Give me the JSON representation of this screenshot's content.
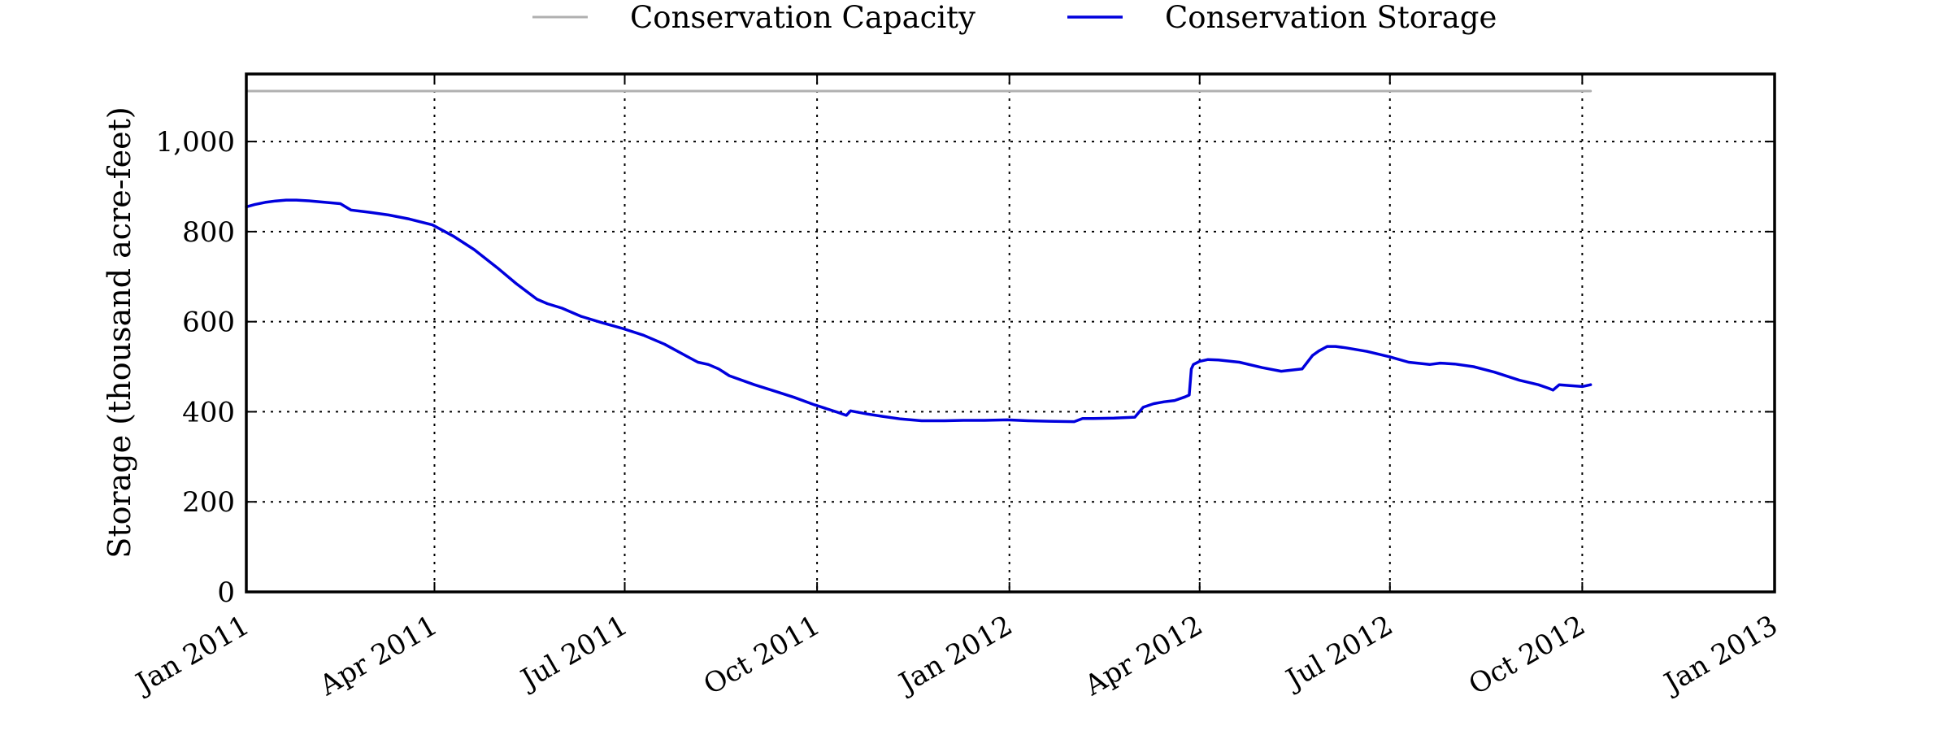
{
  "chart_data": {
    "type": "line",
    "title": "",
    "xlabel": "",
    "ylabel": "Storage (thousand acre-feet)",
    "xlim": [
      "2011-01-01",
      "2013-01-01"
    ],
    "ylim": [
      0,
      1150
    ],
    "grid": true,
    "legend_position": "top-center, outside plot",
    "x_ticks": [
      {
        "date": "2011-01-01",
        "label": "Jan 2011"
      },
      {
        "date": "2011-04-01",
        "label": "Apr 2011"
      },
      {
        "date": "2011-07-01",
        "label": "Jul 2011"
      },
      {
        "date": "2011-10-01",
        "label": "Oct 2011"
      },
      {
        "date": "2012-01-01",
        "label": "Jan 2012"
      },
      {
        "date": "2012-04-01",
        "label": "Apr 2012"
      },
      {
        "date": "2012-07-01",
        "label": "Jul 2012"
      },
      {
        "date": "2012-10-01",
        "label": "Oct 2012"
      },
      {
        "date": "2013-01-01",
        "label": "Jan 2013"
      }
    ],
    "y_ticks": [
      {
        "value": 0,
        "label": "0"
      },
      {
        "value": 200,
        "label": "200"
      },
      {
        "value": 400,
        "label": "400"
      },
      {
        "value": 600,
        "label": "600"
      },
      {
        "value": 800,
        "label": "800"
      },
      {
        "value": 1000,
        "label": "1,000"
      }
    ],
    "series": [
      {
        "name": "Conservation Capacity",
        "color": "#b0b0b0",
        "x": [
          "2011-01-01",
          "2012-10-05"
        ],
        "y": [
          1112,
          1112
        ]
      },
      {
        "name": "Conservation Storage",
        "color": "#0000dd",
        "x": [
          "2011-01-01",
          "2011-01-05",
          "2011-01-10",
          "2011-01-15",
          "2011-01-20",
          "2011-01-25",
          "2011-02-01",
          "2011-02-08",
          "2011-02-15",
          "2011-02-20",
          "2011-02-25",
          "2011-03-01",
          "2011-03-10",
          "2011-03-20",
          "2011-03-31",
          "2011-04-10",
          "2011-04-20",
          "2011-05-01",
          "2011-05-10",
          "2011-05-20",
          "2011-05-25",
          "2011-06-01",
          "2011-06-10",
          "2011-06-20",
          "2011-06-30",
          "2011-07-10",
          "2011-07-20",
          "2011-08-01",
          "2011-08-05",
          "2011-08-10",
          "2011-08-15",
          "2011-08-20",
          "2011-09-01",
          "2011-09-10",
          "2011-09-20",
          "2011-09-30",
          "2011-10-10",
          "2011-10-15",
          "2011-10-17",
          "2011-10-25",
          "2011-11-01",
          "2011-11-10",
          "2011-11-20",
          "2011-12-01",
          "2011-12-10",
          "2011-12-20",
          "2011-12-31",
          "2012-01-10",
          "2012-01-20",
          "2012-02-01",
          "2012-02-05",
          "2012-02-10",
          "2012-02-20",
          "2012-03-01",
          "2012-03-05",
          "2012-03-10",
          "2012-03-15",
          "2012-03-20",
          "2012-03-25",
          "2012-03-27",
          "2012-03-28",
          "2012-03-29",
          "2012-04-01",
          "2012-04-05",
          "2012-04-10",
          "2012-04-20",
          "2012-05-01",
          "2012-05-10",
          "2012-05-20",
          "2012-05-25",
          "2012-05-28",
          "2012-06-01",
          "2012-06-05",
          "2012-06-10",
          "2012-06-20",
          "2012-07-01",
          "2012-07-10",
          "2012-07-20",
          "2012-07-25",
          "2012-08-01",
          "2012-08-10",
          "2012-08-20",
          "2012-09-01",
          "2012-09-10",
          "2012-09-15",
          "2012-09-17",
          "2012-09-20",
          "2012-09-25",
          "2012-10-01",
          "2012-10-05"
        ],
        "y": [
          855,
          860,
          865,
          868,
          870,
          870,
          868,
          865,
          862,
          848,
          845,
          843,
          837,
          828,
          815,
          790,
          760,
          720,
          685,
          650,
          640,
          630,
          612,
          598,
          585,
          570,
          550,
          520,
          510,
          505,
          495,
          480,
          460,
          447,
          432,
          415,
          400,
          392,
          402,
          395,
          390,
          384,
          380,
          380,
          381,
          381,
          382,
          380,
          379,
          378,
          385,
          385,
          386,
          388,
          410,
          418,
          422,
          425,
          433,
          437,
          495,
          505,
          512,
          516,
          515,
          510,
          498,
          490,
          495,
          525,
          535,
          545,
          545,
          542,
          534,
          522,
          510,
          505,
          508,
          506,
          500,
          488,
          470,
          460,
          452,
          448,
          460,
          458,
          456,
          460
        ]
      }
    ]
  }
}
